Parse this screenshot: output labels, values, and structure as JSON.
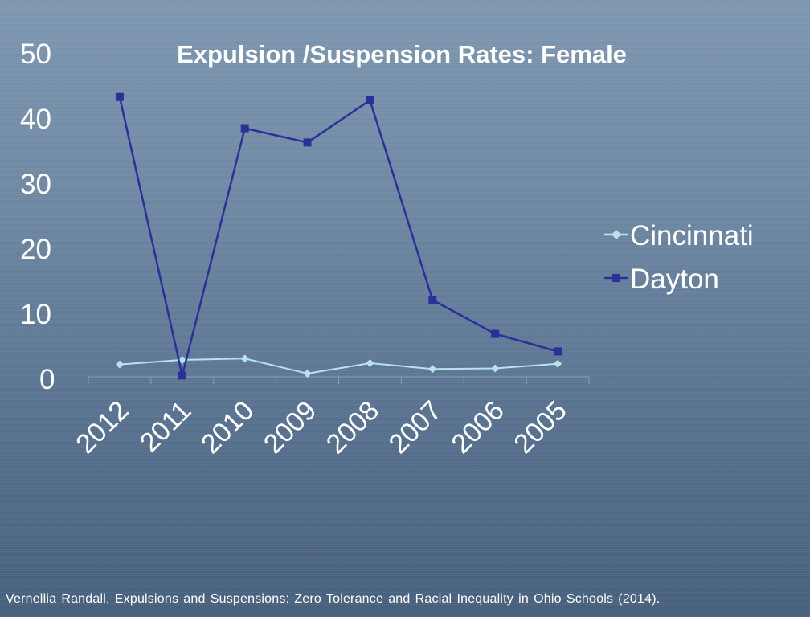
{
  "chart_data": {
    "type": "line",
    "title": "Expulsion /Suspension Rates: Female",
    "categories": [
      "2012",
      "2011",
      "2010",
      "2009",
      "2008",
      "2007",
      "2006",
      "2005"
    ],
    "ylim": [
      0,
      50
    ],
    "yticks": [
      "0",
      "10",
      "20",
      "30",
      "40",
      "50"
    ],
    "grid": false,
    "legend_position": "right",
    "series": [
      {
        "name": "Cincinnati",
        "color": "#b7e3ee",
        "marker": "diamond",
        "values": [
          1.9,
          2.6,
          2.8,
          0.5,
          2.1,
          1.2,
          1.3,
          2.0
        ]
      },
      {
        "name": "Dayton",
        "color": "#2a2f9a",
        "marker": "square",
        "values": [
          43.0,
          0.2,
          38.2,
          36.0,
          42.5,
          11.8,
          6.6,
          3.9
        ]
      }
    ]
  },
  "source": "Vernellia Randall, Expulsions and Suspensions: Zero Tolerance and Racial Inequality in Ohio Schools (2014)."
}
